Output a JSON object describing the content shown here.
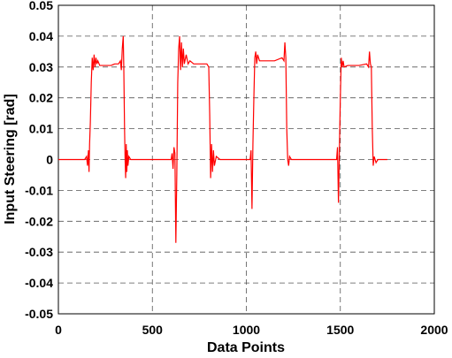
{
  "chart_data": {
    "type": "line",
    "x_label": "Data Points",
    "y_label": "Input Steering [rad]",
    "color": "#ff0000",
    "grid": true,
    "xlim": [
      0,
      2000
    ],
    "xticks": [
      0,
      500,
      1000,
      1500,
      2000
    ],
    "ylim": [
      -0.05,
      0.05
    ],
    "yticks": [
      0.05,
      0.04,
      0.03,
      0.02,
      0.01,
      0,
      -0.01,
      -0.02,
      -0.03,
      -0.04,
      -0.05
    ],
    "x": [
      0,
      140,
      150,
      155,
      160,
      163,
      166,
      170,
      175,
      180,
      185,
      190,
      195,
      200,
      205,
      210,
      220,
      250,
      280,
      300,
      320,
      330,
      335,
      340,
      345,
      348,
      352,
      355,
      358,
      361,
      364,
      367,
      370,
      375,
      385,
      600,
      605,
      610,
      615,
      620,
      625,
      630,
      635,
      640,
      645,
      650,
      655,
      660,
      665,
      670,
      680,
      690,
      700,
      720,
      760,
      790,
      800,
      805,
      810,
      815,
      820,
      825,
      830,
      840,
      860,
      1020,
      1025,
      1030,
      1035,
      1040,
      1045,
      1050,
      1055,
      1060,
      1070,
      1100,
      1150,
      1190,
      1200,
      1205,
      1210,
      1215,
      1220,
      1225,
      1230,
      1240,
      1480,
      1485,
      1490,
      1495,
      1500,
      1505,
      1510,
      1515,
      1520,
      1540,
      1600,
      1640,
      1650,
      1655,
      1660,
      1665,
      1670,
      1675,
      1680,
      1690,
      1700,
      1750
    ],
    "values": [
      0,
      0,
      0.001,
      -0.002,
      0.003,
      -0.004,
      0.005,
      0.012,
      0.025,
      0.033,
      0.029,
      0.034,
      0.03,
      0.033,
      0.031,
      0.032,
      0.0305,
      0.0305,
      0.0305,
      0.031,
      0.031,
      0.032,
      0.029,
      0.036,
      0.04,
      0.03,
      0.01,
      0,
      -0.006,
      0.005,
      -0.004,
      0.003,
      -0.002,
      0.001,
      0,
      0,
      0.002,
      -0.003,
      0.004,
      0.002,
      -0.027,
      -0.005,
      0.025,
      0.036,
      0.04,
      0.029,
      0.038,
      0.03,
      0.036,
      0.031,
      0.034,
      0.031,
      0.032,
      0.031,
      0.031,
      0.031,
      0.03,
      0.015,
      -0.006,
      0.005,
      -0.004,
      0.003,
      -0.002,
      0.001,
      0,
      0,
      0.003,
      -0.016,
      0.005,
      0.02,
      0.033,
      0.035,
      0.031,
      0.034,
      0.032,
      0.032,
      0.032,
      0.033,
      0.032,
      0.038,
      0.033,
      0.01,
      0,
      -0.002,
      0.001,
      0,
      0,
      0.004,
      -0.014,
      0.003,
      0.02,
      0.033,
      0.03,
      0.032,
      0.03,
      0.0305,
      0.0305,
      0.031,
      0.03,
      0.035,
      0.031,
      0.03,
      0.01,
      -0.002,
      0.001,
      -0.001,
      0,
      0
    ]
  }
}
